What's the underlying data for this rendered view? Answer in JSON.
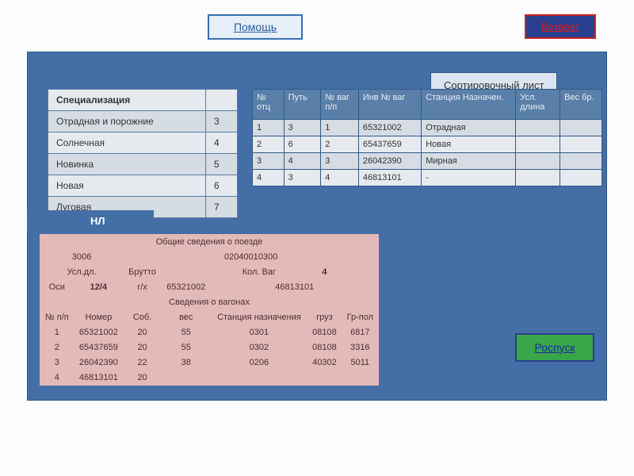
{
  "buttons": {
    "help": "Помощь",
    "return": "Возврат",
    "rospusk": "Роспуск"
  },
  "labels": {
    "sort_sheet": "Сортировочный лист",
    "nl": "НЛ"
  },
  "spec_table": {
    "header": "Специализация",
    "rows": [
      {
        "name": "Отрадная и порожние",
        "num": "3"
      },
      {
        "name": "Солнечная",
        "num": "4"
      },
      {
        "name": "Новинка",
        "num": "5"
      },
      {
        "name": "Новая",
        "num": "6"
      },
      {
        "name": "Луговая",
        "num": "7"
      }
    ]
  },
  "sort_table": {
    "headers": [
      "№ отц",
      "Путь",
      "№ ваг п/п",
      "Инв № ваг",
      "Станция Назначен.",
      "Усл. длина",
      "Вес бр."
    ],
    "rows": [
      [
        "1",
        "3",
        "1",
        "65321002",
        "Отрадная",
        "",
        ""
      ],
      [
        "2",
        "6",
        "2",
        "65437659",
        "Новая",
        "",
        ""
      ],
      [
        "3",
        "4",
        "3",
        "26042390",
        "Мирная",
        "",
        ""
      ],
      [
        "4",
        "3",
        "4",
        "46813101",
        "-",
        "",
        ""
      ]
    ]
  },
  "info": {
    "title1": "Общие сведения о поезде",
    "r1": {
      "c1": "3006",
      "c2": "02040010300"
    },
    "r2": {
      "c1": "Усл.дл.",
      "c2": "Брутто",
      "c3": "Кол. Ваг",
      "c4": "4"
    },
    "r3": {
      "c1": "Оси",
      "c2": "12/4",
      "c3": "г/х",
      "c4": "65321002",
      "c5": "46813101"
    },
    "title2": "Сведения о вагонах",
    "wag_headers": [
      "№ п/п",
      "Номер",
      "Соб.",
      "вес",
      "Станция назначения",
      "груз",
      "Гр-пол"
    ],
    "wag_rows": [
      [
        "1",
        "65321002",
        "20",
        "55",
        "0301",
        "08108",
        "6817"
      ],
      [
        "2",
        "65437659",
        "20",
        "55",
        "0302",
        "08108",
        "3316"
      ],
      [
        "3",
        "26042390",
        "22",
        "38",
        "0206",
        "40302",
        "5011"
      ],
      [
        "4",
        "46813101",
        "20",
        "",
        "",
        "",
        ""
      ]
    ]
  },
  "styles": {
    "panel_bg": "#436fa6",
    "pink_bg": "#e4b9b9",
    "green_bg": "#3aa64a",
    "blue_text": "#2a5aa0",
    "red_border": "#cc2222"
  }
}
